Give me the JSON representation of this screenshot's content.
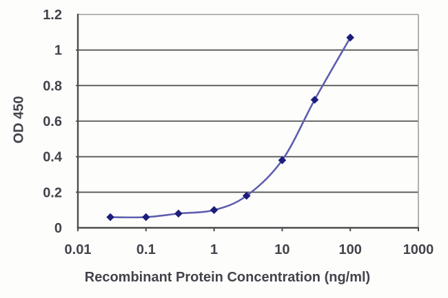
{
  "chart_data": {
    "type": "line",
    "title": "",
    "xlabel": "Recombinant Protein Concentration (ng/ml)",
    "ylabel": "OD 450",
    "x_scale": "log",
    "xlim": [
      0.01,
      1000
    ],
    "ylim": [
      0,
      1.2
    ],
    "x": [
      0.03,
      0.1,
      0.3,
      1,
      3,
      10,
      30,
      100
    ],
    "values": [
      0.06,
      0.06,
      0.08,
      0.1,
      0.18,
      0.38,
      0.72,
      1.07
    ],
    "x_tick_values": [
      0.01,
      0.1,
      1,
      10,
      100,
      1000
    ],
    "x_tick_labels": [
      "0.01",
      "0.1",
      "1",
      "10",
      "100",
      "1000"
    ],
    "y_tick_values": [
      0,
      0.2,
      0.4,
      0.6,
      0.8,
      1,
      1.2
    ],
    "y_tick_labels": [
      "0",
      "0.2",
      "0.4",
      "0.6",
      "0.8",
      "1",
      "1.2"
    ],
    "grid": "horizontal",
    "legend_position": "none",
    "marker": "diamond",
    "line_smooth": true,
    "colors": {
      "line": "#5d5dae",
      "marker": "#1d1d7c",
      "grid": "#565656",
      "axis": "#4b4b4b",
      "frame": "#9d9d9d",
      "text": "#43434b",
      "background": "#fdfdfc"
    }
  }
}
